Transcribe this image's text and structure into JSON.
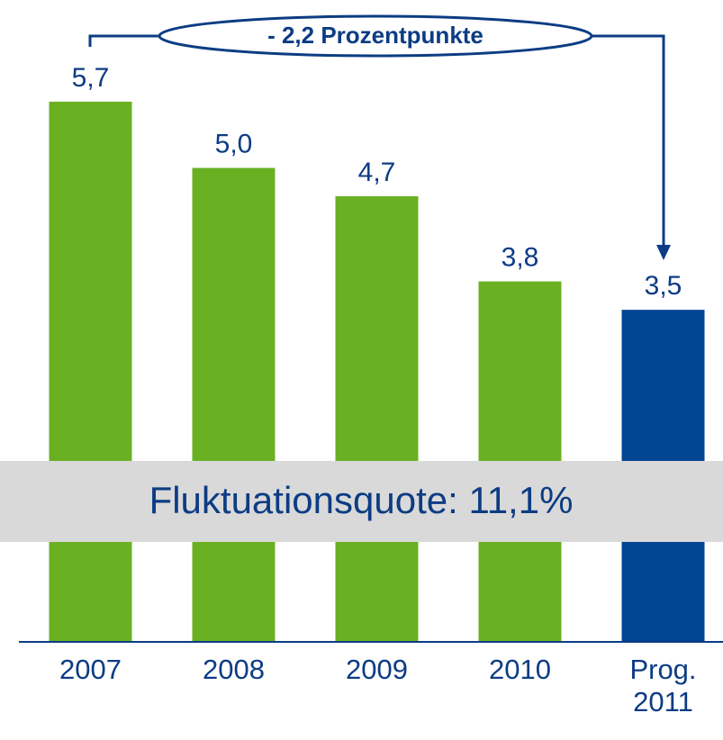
{
  "chart_data": {
    "type": "bar",
    "categories": [
      "2007",
      "2008",
      "2009",
      "2010",
      "Prog.\n2011"
    ],
    "values": [
      5.7,
      5.0,
      4.7,
      3.8,
      3.5
    ],
    "value_labels": [
      "5,7",
      "5,0",
      "4,7",
      "3,8",
      "3,5"
    ],
    "colors": [
      "#6ab023",
      "#6ab023",
      "#6ab023",
      "#6ab023",
      "#004494"
    ],
    "annotations": [
      "- 2,2 Prozentpunkte",
      "Fluktuationsquote: 11,1%"
    ]
  }
}
